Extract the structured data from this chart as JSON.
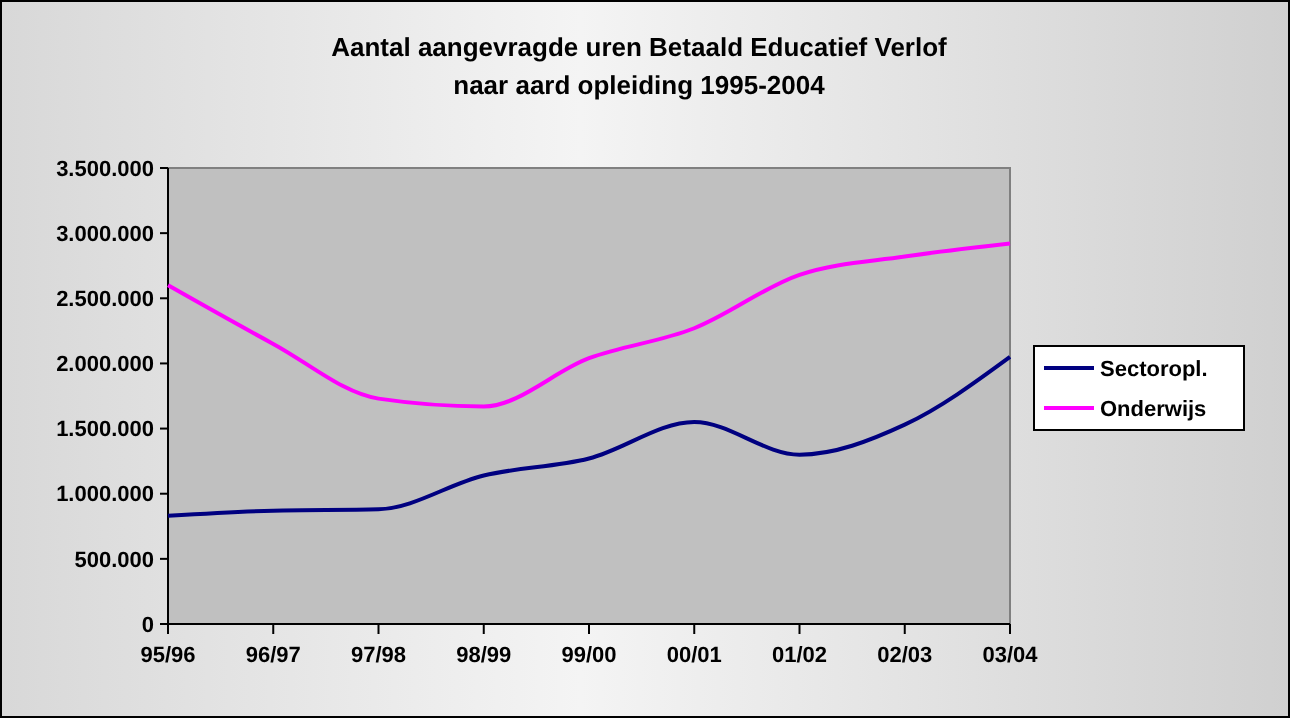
{
  "chart_data": {
    "type": "line",
    "title": "Aantal aangevragde uren Betaald Educatief Verlof naar aard opleiding 1995-2004",
    "categories": [
      "95/96",
      "96/97",
      "97/98",
      "98/99",
      "99/00",
      "00/01",
      "01/02",
      "02/03",
      "03/04"
    ],
    "series": [
      {
        "name": "Sectoropl.",
        "color": "#000080",
        "values": [
          830000,
          870000,
          880000,
          1140000,
          1270000,
          1550000,
          1300000,
          1530000,
          2050000
        ]
      },
      {
        "name": "Onderwijs",
        "color": "#ff00ff",
        "values": [
          2600000,
          2150000,
          1730000,
          1670000,
          2040000,
          2270000,
          2680000,
          2820000,
          2920000
        ]
      }
    ],
    "ylim": [
      0,
      3500000
    ],
    "yticks": [
      {
        "value": 0,
        "label": "0"
      },
      {
        "value": 500000,
        "label": "500.000"
      },
      {
        "value": 1000000,
        "label": "1.000.000"
      },
      {
        "value": 1500000,
        "label": "1.500.000"
      },
      {
        "value": 2000000,
        "label": "2.000.000"
      },
      {
        "value": 2500000,
        "label": "2.500.000"
      },
      {
        "value": 3000000,
        "label": "3.000.000"
      },
      {
        "value": 3500000,
        "label": "3.500.000"
      }
    ],
    "grid": false,
    "legend": "right",
    "marker": "none",
    "line_style": "solid"
  }
}
